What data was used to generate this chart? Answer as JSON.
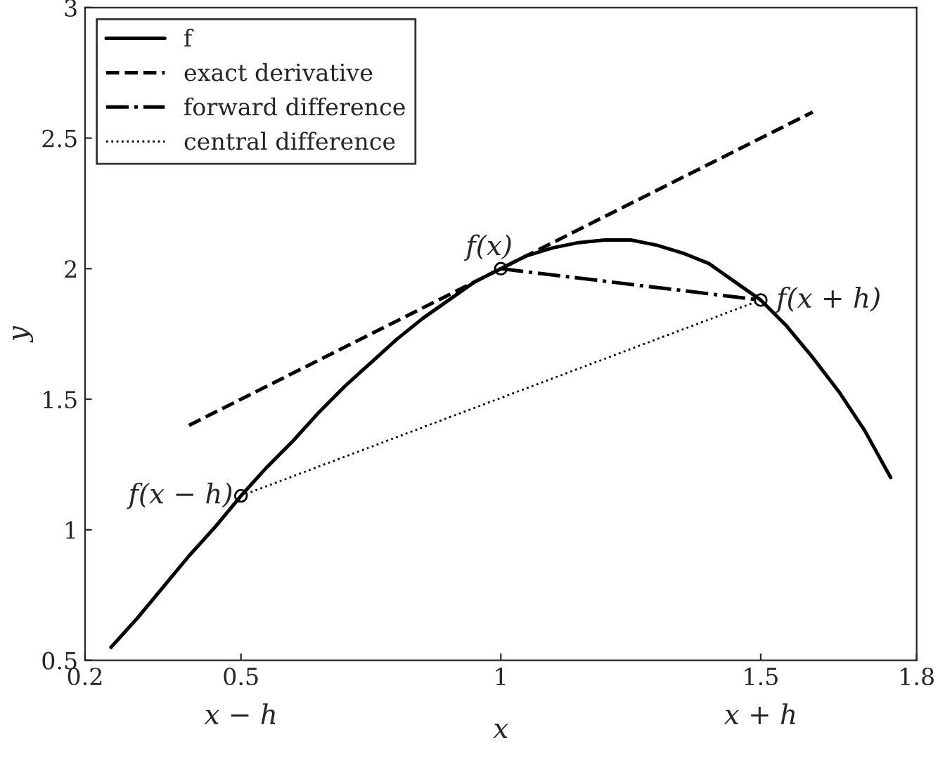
{
  "chart_data": {
    "type": "line",
    "xlabel": "x",
    "ylabel": "y",
    "xlim": [
      0.2,
      1.8
    ],
    "xticks": [
      0.2,
      0.5,
      1,
      1.5,
      1.8
    ],
    "ylim": [
      0.5,
      3
    ],
    "yticks": [
      0.5,
      1,
      1.5,
      2,
      2.5,
      3
    ],
    "grid": false,
    "legend": "top left",
    "series": [
      {
        "name": "f",
        "color": "#000000",
        "line_style": "solid",
        "x": [
          0.25,
          0.3,
          0.35,
          0.4,
          0.45,
          0.5,
          0.55,
          0.6,
          0.65,
          0.7,
          0.75,
          0.8,
          0.85,
          0.9,
          0.95,
          1,
          1.05,
          1.1,
          1.15,
          1.2,
          1.25,
          1.3,
          1.35,
          1.4,
          1.45,
          1.5,
          1.55,
          1.6,
          1.65,
          1.7,
          1.75
        ],
        "values": [
          0.55,
          0.66,
          0.78,
          0.9,
          1.01,
          1.13,
          1.24,
          1.34,
          1.45,
          1.55,
          1.64,
          1.73,
          1.81,
          1.88,
          1.95,
          2,
          2.05,
          2.08,
          2.1,
          2.11,
          2.11,
          2.09,
          2.06,
          2.02,
          1.95,
          1.88,
          1.78,
          1.66,
          1.53,
          1.38,
          1.2
        ]
      },
      {
        "name": "exact derivative",
        "color": "#000000",
        "line_style": "dashed",
        "x": [
          0.4,
          1.6
        ],
        "values": [
          1.4,
          2.6
        ]
      },
      {
        "name": "forward difference",
        "color": "#000000",
        "line_style": "dashdot",
        "x": [
          1,
          1.5
        ],
        "values": [
          2,
          1.88
        ]
      },
      {
        "name": "central difference",
        "color": "#000000",
        "line_style": "dotted",
        "x": [
          0.5,
          1.5
        ],
        "values": [
          1.13,
          1.88
        ]
      },
      {
        "type": "scatter",
        "marker": "circle",
        "color": "#000000",
        "x": [
          0.5,
          1,
          1.5
        ],
        "values": [
          1.13,
          2,
          1.88
        ]
      }
    ],
    "annotations": [
      {
        "text": "f(x − h)",
        "x": 0.5,
        "y": 1.13
      },
      {
        "text": "f(x)",
        "x": 1,
        "y": 2
      },
      {
        "text": "f(x + h)",
        "x": 1.5,
        "y": 1.88
      },
      "x − h",
      "x + h"
    ]
  }
}
